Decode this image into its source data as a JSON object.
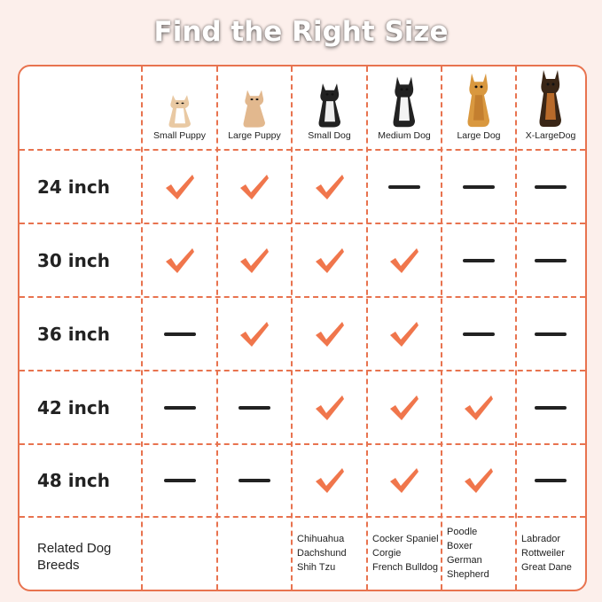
{
  "title": "Find the Right Size",
  "colors": {
    "accent": "#e8734f",
    "background": "#fcefeb",
    "dash": "#222222"
  },
  "columns": [
    "Small Puppy",
    "Large Puppy",
    "Small Dog",
    "Medium Dog",
    "Large Dog",
    "X-LargeDog"
  ],
  "column_images": [
    "corgi-puppy-photo",
    "chihuahua-photo",
    "french-bulldog-photo",
    "border-collie-photo",
    "golden-retriever-photo",
    "german-shepherd-photo"
  ],
  "rows": [
    {
      "label": "24 inch",
      "fits": [
        true,
        true,
        true,
        false,
        false,
        false
      ]
    },
    {
      "label": "30 inch",
      "fits": [
        true,
        true,
        true,
        true,
        false,
        false
      ]
    },
    {
      "label": "36 inch",
      "fits": [
        false,
        true,
        true,
        true,
        false,
        false
      ]
    },
    {
      "label": "42 inch",
      "fits": [
        false,
        false,
        true,
        true,
        true,
        false
      ]
    },
    {
      "label": "48 inch",
      "fits": [
        false,
        false,
        true,
        true,
        true,
        false
      ]
    }
  ],
  "breeds_label": "Related Dog Breeds",
  "breeds": [
    [],
    [],
    [
      "Chihuahua",
      "Dachshund",
      "Shih Tzu"
    ],
    [
      "Cocker Spaniel",
      "Corgie",
      "French Bulldog"
    ],
    [
      "Poodle",
      "Boxer",
      "German",
      "Shepherd"
    ],
    [
      "Labrador",
      "Rottweiler",
      "Great Dane"
    ]
  ]
}
